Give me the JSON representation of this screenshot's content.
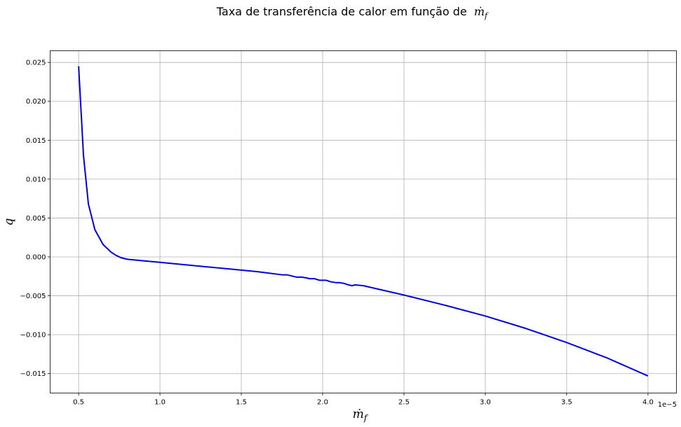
{
  "chart_data": {
    "type": "line",
    "title": "Taxa de transferência de calor em função de ṁ_f",
    "title_text": "Taxa de transferência de calor em função de",
    "title_math": "ṁ",
    "title_math_sub": "f",
    "xlabel": "ṁ",
    "xlabel_sub": "f",
    "ylabel": "q",
    "x_offset_label": "1e−5",
    "xlim": [
      0.325,
      4.175
    ],
    "ylim": [
      -0.0175,
      0.0265
    ],
    "x_ticks": [
      0.5,
      1.0,
      1.5,
      2.0,
      2.5,
      3.0,
      3.5,
      4.0
    ],
    "x_tick_labels": [
      "0.5",
      "1.0",
      "1.5",
      "2.0",
      "2.5",
      "3.0",
      "3.5",
      "4.0"
    ],
    "y_ticks": [
      0.025,
      0.02,
      0.015,
      0.01,
      0.005,
      0.0,
      -0.005,
      -0.01,
      -0.015
    ],
    "y_tick_labels": [
      "0.025",
      "0.020",
      "0.015",
      "0.010",
      "0.005",
      "0.000",
      "−0.005",
      "−0.010",
      "−0.015"
    ],
    "grid": true,
    "series": [
      {
        "color": "#0000dd",
        "x": [
          0.5,
          0.53,
          0.56,
          0.6,
          0.65,
          0.7,
          0.73,
          0.76,
          0.8,
          0.85,
          0.9,
          1.0,
          1.2,
          1.4,
          1.6,
          1.75,
          1.78,
          1.8,
          1.84,
          1.87,
          1.9,
          1.92,
          1.95,
          1.98,
          2.0,
          2.02,
          2.05,
          2.08,
          2.1,
          2.13,
          2.16,
          2.18,
          2.2,
          2.25,
          2.5,
          2.75,
          3.0,
          3.25,
          3.5,
          3.75,
          4.0
        ],
        "y": [
          0.0245,
          0.013,
          0.0068,
          0.0035,
          0.0016,
          0.0006,
          0.0002,
          -0.0001,
          -0.0003,
          -0.0004,
          -0.0005,
          -0.0007,
          -0.0011,
          -0.0015,
          -0.0019,
          -0.0023,
          -0.0023,
          -0.0024,
          -0.0026,
          -0.0026,
          -0.0027,
          -0.0028,
          -0.0028,
          -0.003,
          -0.003,
          -0.003,
          -0.0032,
          -0.0033,
          -0.0033,
          -0.0034,
          -0.0036,
          -0.0037,
          -0.0036,
          -0.0037,
          -0.0049,
          -0.0062,
          -0.0076,
          -0.0092,
          -0.011,
          -0.013,
          -0.0153
        ]
      }
    ]
  }
}
